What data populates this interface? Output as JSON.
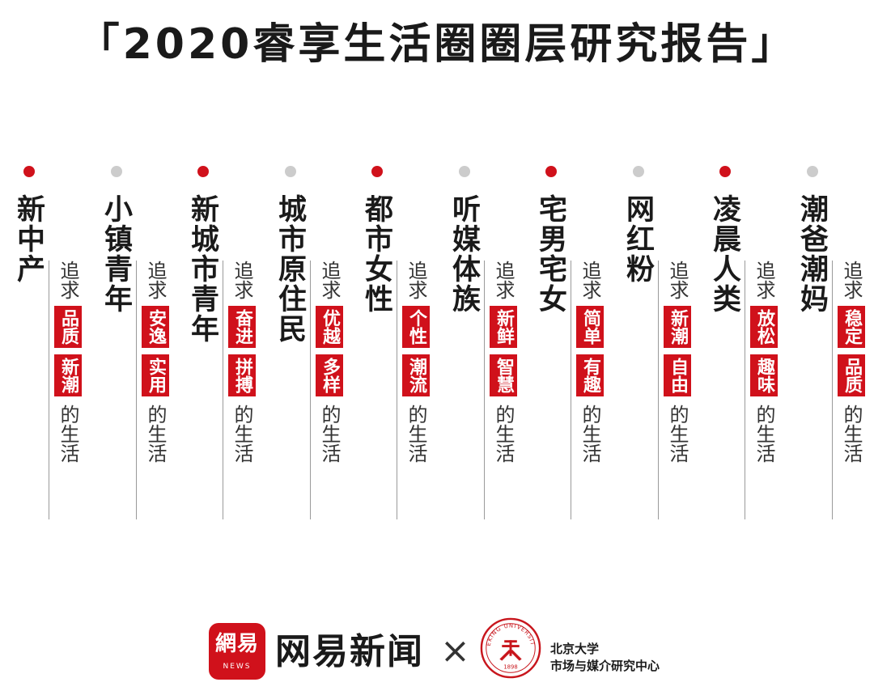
{
  "title": "「2020睿享生活圈圈层研究报告」",
  "colors": {
    "accent": "#d0111b",
    "inactive_dot": "#cccccc",
    "text": "#1a1a1a"
  },
  "common": {
    "pursue": "追求",
    "life": "的生活"
  },
  "columns": [
    {
      "name": "新中产",
      "keywords": [
        "品质",
        "新潮"
      ],
      "dot": "red"
    },
    {
      "name": "小镇青年",
      "keywords": [
        "安逸",
        "实用"
      ],
      "dot": "gray"
    },
    {
      "name": "新城市青年",
      "keywords": [
        "奋进",
        "拼搏"
      ],
      "dot": "red"
    },
    {
      "name": "城市原住民",
      "keywords": [
        "优越",
        "多样"
      ],
      "dot": "gray"
    },
    {
      "name": "都市女性",
      "keywords": [
        "个性",
        "潮流"
      ],
      "dot": "red"
    },
    {
      "name": "听媒体族",
      "keywords": [
        "新鲜",
        "智慧"
      ],
      "dot": "gray"
    },
    {
      "name": "宅男宅女",
      "keywords": [
        "简单",
        "有趣"
      ],
      "dot": "red"
    },
    {
      "name": "网红粉",
      "keywords": [
        "新潮",
        "自由"
      ],
      "dot": "gray"
    },
    {
      "name": "凌晨人类",
      "keywords": [
        "放松",
        "趣味"
      ],
      "dot": "red"
    },
    {
      "name": "潮爸潮妈",
      "keywords": [
        "稳定",
        "品质"
      ],
      "dot": "gray"
    }
  ],
  "footer": {
    "netease_logo_main": "網易",
    "netease_logo_sub": "NEWS",
    "netease_name": "网易新闻",
    "times": "×",
    "pku_seal_text": "PEKING UNIVERSITY",
    "pku_seal_year": "1898",
    "pku_line1": "北京大学",
    "pku_line2": "市场与媒介研究中心"
  }
}
